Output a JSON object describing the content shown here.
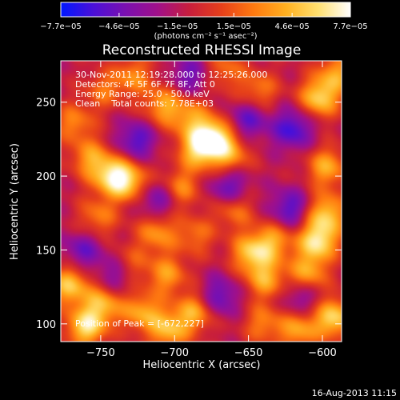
{
  "chart_data": {
    "type": "heatmap",
    "title": "Reconstructed RHESSI Image",
    "xlabel": "Heliocentric X (arcsec)",
    "ylabel": "Heliocentric Y (arcsec)",
    "xlim": [
      -777,
      -587
    ],
    "ylim": [
      88,
      278
    ],
    "x_ticks": [
      -750,
      -700,
      -650,
      -600
    ],
    "x_tick_labels": [
      "−750",
      "−700",
      "−650",
      "−600"
    ],
    "y_ticks": [
      100,
      150,
      200,
      250
    ],
    "y_tick_labels": [
      "100",
      "150",
      "200",
      "250"
    ],
    "colorbar": {
      "min": -7.7e-05,
      "max": 7.7e-05,
      "ticks": [
        -7.7e-05,
        -4.6e-05,
        -1.5e-05,
        1.5e-05,
        4.6e-05,
        7.7e-05
      ],
      "tick_labels": [
        "−7.7e−05",
        "−4.6e−05",
        "−1.5e−05",
        "1.5e−05",
        "4.6e−05",
        "7.7e−05"
      ],
      "unit_label": "(photons cm⁻² s⁻¹ asec⁻²)",
      "colors": [
        "#0018ff",
        "#4a10d8",
        "#7a10b0",
        "#a0108a",
        "#c81e3c",
        "#e6401a",
        "#ff7a10",
        "#ffb020",
        "#ffe070",
        "#ffffff"
      ]
    },
    "annotations": {
      "time": "30-Nov-2011 12:19:28.000 to 12:25:26.000",
      "detectors": "Detectors: 4F 5F 6F 7F 8F, Att 0",
      "energy": "Energy Range: 25.0 - 50.0 keV",
      "clean": "Clean    Total counts: 7.78E+03",
      "peak": "Position of Peak = [-672,227]"
    },
    "peak_position": [
      -672,
      227
    ],
    "sources": [
      {
        "x": -674,
        "y": 226,
        "amp": 7.7e-05
      },
      {
        "x": -684,
        "y": 218,
        "amp": 5.8e-05
      },
      {
        "x": -662,
        "y": 214,
        "amp": 4.4e-05
      },
      {
        "x": -708,
        "y": 248,
        "amp": 4.8e-05
      },
      {
        "x": -690,
        "y": 240,
        "amp": 4.2e-05
      },
      {
        "x": -742,
        "y": 200,
        "amp": 6.6e-05
      },
      {
        "x": -730,
        "y": 196,
        "amp": 5.2e-05
      },
      {
        "x": -757,
        "y": 212,
        "amp": 4.5e-05
      },
      {
        "x": -768,
        "y": 236,
        "amp": 4e-05
      },
      {
        "x": -752,
        "y": 172,
        "amp": 3.8e-05
      },
      {
        "x": -771,
        "y": 126,
        "amp": 6.2e-05
      },
      {
        "x": -760,
        "y": 98,
        "amp": 7e-05
      },
      {
        "x": -748,
        "y": 114,
        "amp": 5.4e-05
      },
      {
        "x": -722,
        "y": 108,
        "amp": 5e-05
      },
      {
        "x": -704,
        "y": 96,
        "amp": 5.6e-05
      },
      {
        "x": -686,
        "y": 108,
        "amp": 5.2e-05
      },
      {
        "x": -705,
        "y": 133,
        "amp": 4.6e-05
      },
      {
        "x": -712,
        "y": 162,
        "amp": 4.6e-05
      },
      {
        "x": -696,
        "y": 192,
        "amp": 4.2e-05
      },
      {
        "x": -648,
        "y": 148,
        "amp": 6e-05
      },
      {
        "x": -638,
        "y": 130,
        "amp": 5e-05
      },
      {
        "x": -633,
        "y": 156,
        "amp": 4.6e-05
      },
      {
        "x": -660,
        "y": 178,
        "amp": 4e-05
      },
      {
        "x": -603,
        "y": 156,
        "amp": 7.4e-05
      },
      {
        "x": -597,
        "y": 175,
        "amp": 6e-05
      },
      {
        "x": -610,
        "y": 134,
        "amp": 5.2e-05
      },
      {
        "x": -592,
        "y": 104,
        "amp": 6.8e-05
      },
      {
        "x": -616,
        "y": 96,
        "amp": 5e-05
      },
      {
        "x": -640,
        "y": 100,
        "amp": 3.8e-05
      },
      {
        "x": -597,
        "y": 206,
        "amp": 5.2e-05
      },
      {
        "x": -602,
        "y": 253,
        "amp": 6.6e-05
      },
      {
        "x": -590,
        "y": 270,
        "amp": 4.6e-05
      },
      {
        "x": -643,
        "y": 258,
        "amp": 3.8e-05
      },
      {
        "x": -666,
        "y": 272,
        "amp": 3.4e-05
      },
      {
        "x": -728,
        "y": 268,
        "amp": 4e-05
      },
      {
        "x": -748,
        "y": 258,
        "amp": 3.2e-05
      },
      {
        "x": -686,
        "y": 160,
        "amp": 3.4e-05
      },
      {
        "x": -730,
        "y": 140,
        "amp": 3e-05
      },
      {
        "x": -726,
        "y": 224,
        "amp": -4.4e-05
      },
      {
        "x": -663,
        "y": 192,
        "amp": -4.6e-05
      },
      {
        "x": -620,
        "y": 232,
        "amp": -5e-05
      },
      {
        "x": -622,
        "y": 178,
        "amp": -4.4e-05
      },
      {
        "x": -712,
        "y": 184,
        "amp": -4e-05
      },
      {
        "x": -762,
        "y": 150,
        "amp": -3.6e-05
      },
      {
        "x": -650,
        "y": 238,
        "amp": -4e-05
      },
      {
        "x": -670,
        "y": 118,
        "amp": -4.2e-05
      },
      {
        "x": -740,
        "y": 132,
        "amp": -3.6e-05
      },
      {
        "x": -615,
        "y": 118,
        "amp": -3.4e-05
      },
      {
        "x": -690,
        "y": 268,
        "amp": -3.6e-05
      }
    ]
  },
  "footer": {
    "timestamp": "16-Aug-2013 11:15"
  }
}
